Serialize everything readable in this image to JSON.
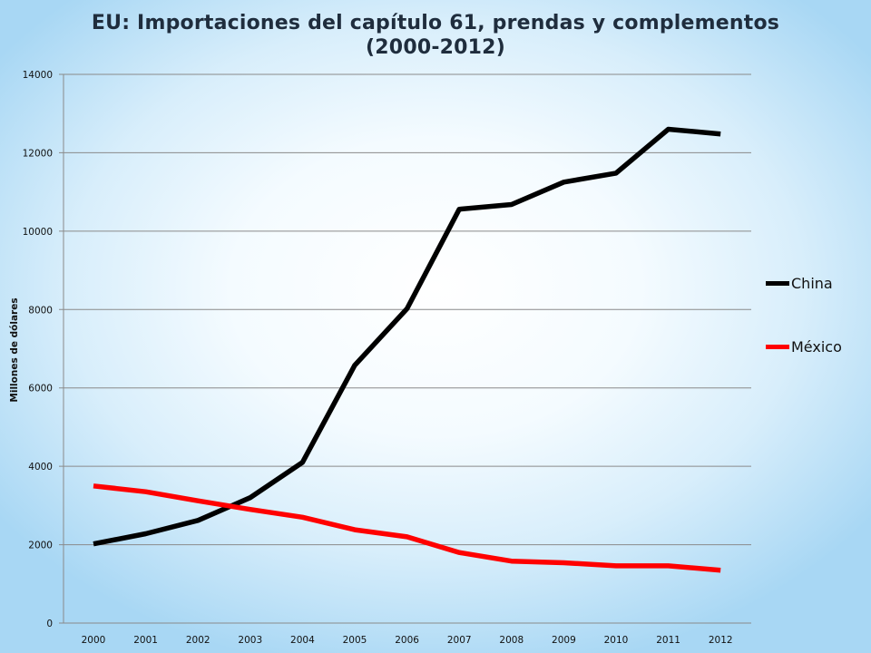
{
  "chart_data": {
    "type": "line",
    "title_line1": "EU: Importaciones del capítulo 61, prendas y complementos",
    "title_line2": "(2000-2012)",
    "xlabel": "",
    "ylabel": "Millones de dólares",
    "x": [
      "2000",
      "2001",
      "2002",
      "2003",
      "2004",
      "2005",
      "2006",
      "2007",
      "2008",
      "2009",
      "2010",
      "2011",
      "2012"
    ],
    "ylim": [
      0,
      14000
    ],
    "yticks": [
      0,
      2000,
      4000,
      6000,
      8000,
      10000,
      12000,
      14000
    ],
    "grid": true,
    "legend_position": "right",
    "series": [
      {
        "name": "China",
        "color": "#000000",
        "values": [
          2020,
          2280,
          2620,
          3200,
          4100,
          6580,
          8020,
          10560,
          10680,
          11250,
          11480,
          12600,
          12480
        ]
      },
      {
        "name": "México",
        "color": "#ff0000",
        "values": [
          3500,
          3350,
          3120,
          2900,
          2700,
          2380,
          2200,
          1800,
          1580,
          1540,
          1460,
          1460,
          1350
        ]
      }
    ]
  }
}
